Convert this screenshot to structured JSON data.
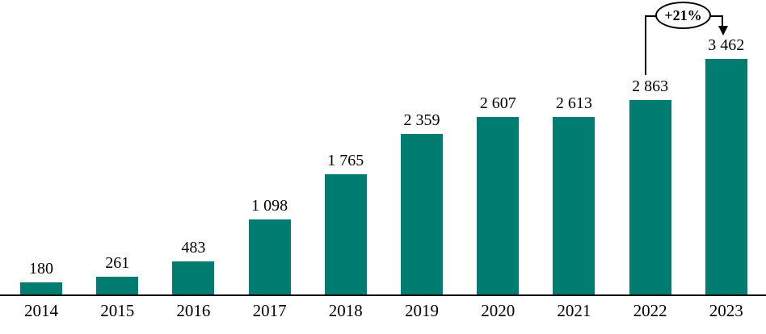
{
  "chart_data": {
    "type": "bar",
    "categories": [
      "2014",
      "2015",
      "2016",
      "2017",
      "2018",
      "2019",
      "2020",
      "2021",
      "2022",
      "2023"
    ],
    "values": [
      180,
      261,
      483,
      1098,
      1765,
      2359,
      2607,
      2613,
      2863,
      3462
    ],
    "value_labels": [
      "180",
      "261",
      "483",
      "1 098",
      "1 765",
      "2 359",
      "2 607",
      "2 613",
      "2 863",
      "3 462"
    ],
    "title": "",
    "xlabel": "",
    "ylabel": "",
    "ylim": [
      0,
      3500
    ],
    "grid": false,
    "legend": "none",
    "bar_color": "#007C71",
    "axis_color": "#000000",
    "annotation": {
      "label": "+21%",
      "from_category": "2022",
      "to_category": "2023"
    }
  }
}
